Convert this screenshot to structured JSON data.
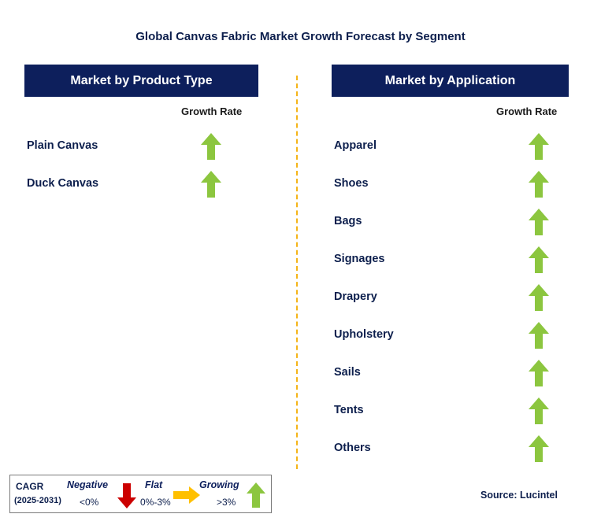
{
  "title": "Global Canvas Fabric Market Growth Forecast by Segment",
  "left_panel": {
    "header": "Market by Product Type",
    "column_label": "Growth Rate",
    "rows": [
      {
        "label": "Plain Canvas",
        "trend": "growing"
      },
      {
        "label": "Duck Canvas",
        "trend": "growing"
      }
    ]
  },
  "right_panel": {
    "header": "Market by Application",
    "column_label": "Growth Rate",
    "rows": [
      {
        "label": "Apparel",
        "trend": "growing"
      },
      {
        "label": "Shoes",
        "trend": "growing"
      },
      {
        "label": "Bags",
        "trend": "growing"
      },
      {
        "label": "Signages",
        "trend": "growing"
      },
      {
        "label": "Drapery",
        "trend": "growing"
      },
      {
        "label": "Upholstery",
        "trend": "growing"
      },
      {
        "label": "Sails",
        "trend": "growing"
      },
      {
        "label": "Tents",
        "trend": "growing"
      },
      {
        "label": "Others",
        "trend": "growing"
      }
    ]
  },
  "legend": {
    "cagr_label": "CAGR",
    "period": "(2025-2031)",
    "negative": {
      "title": "Negative",
      "range": "<0%"
    },
    "flat": {
      "title": "Flat",
      "range": "0%-3%"
    },
    "growing": {
      "title": "Growing",
      "range": ">3%"
    }
  },
  "source": "Source: Lucintel",
  "colors": {
    "header_bg": "#0d1f5c",
    "growing_arrow": "#8cc63f",
    "negative_arrow": "#cc0000",
    "flat_arrow": "#ffc000",
    "divider": "#f5b418"
  }
}
